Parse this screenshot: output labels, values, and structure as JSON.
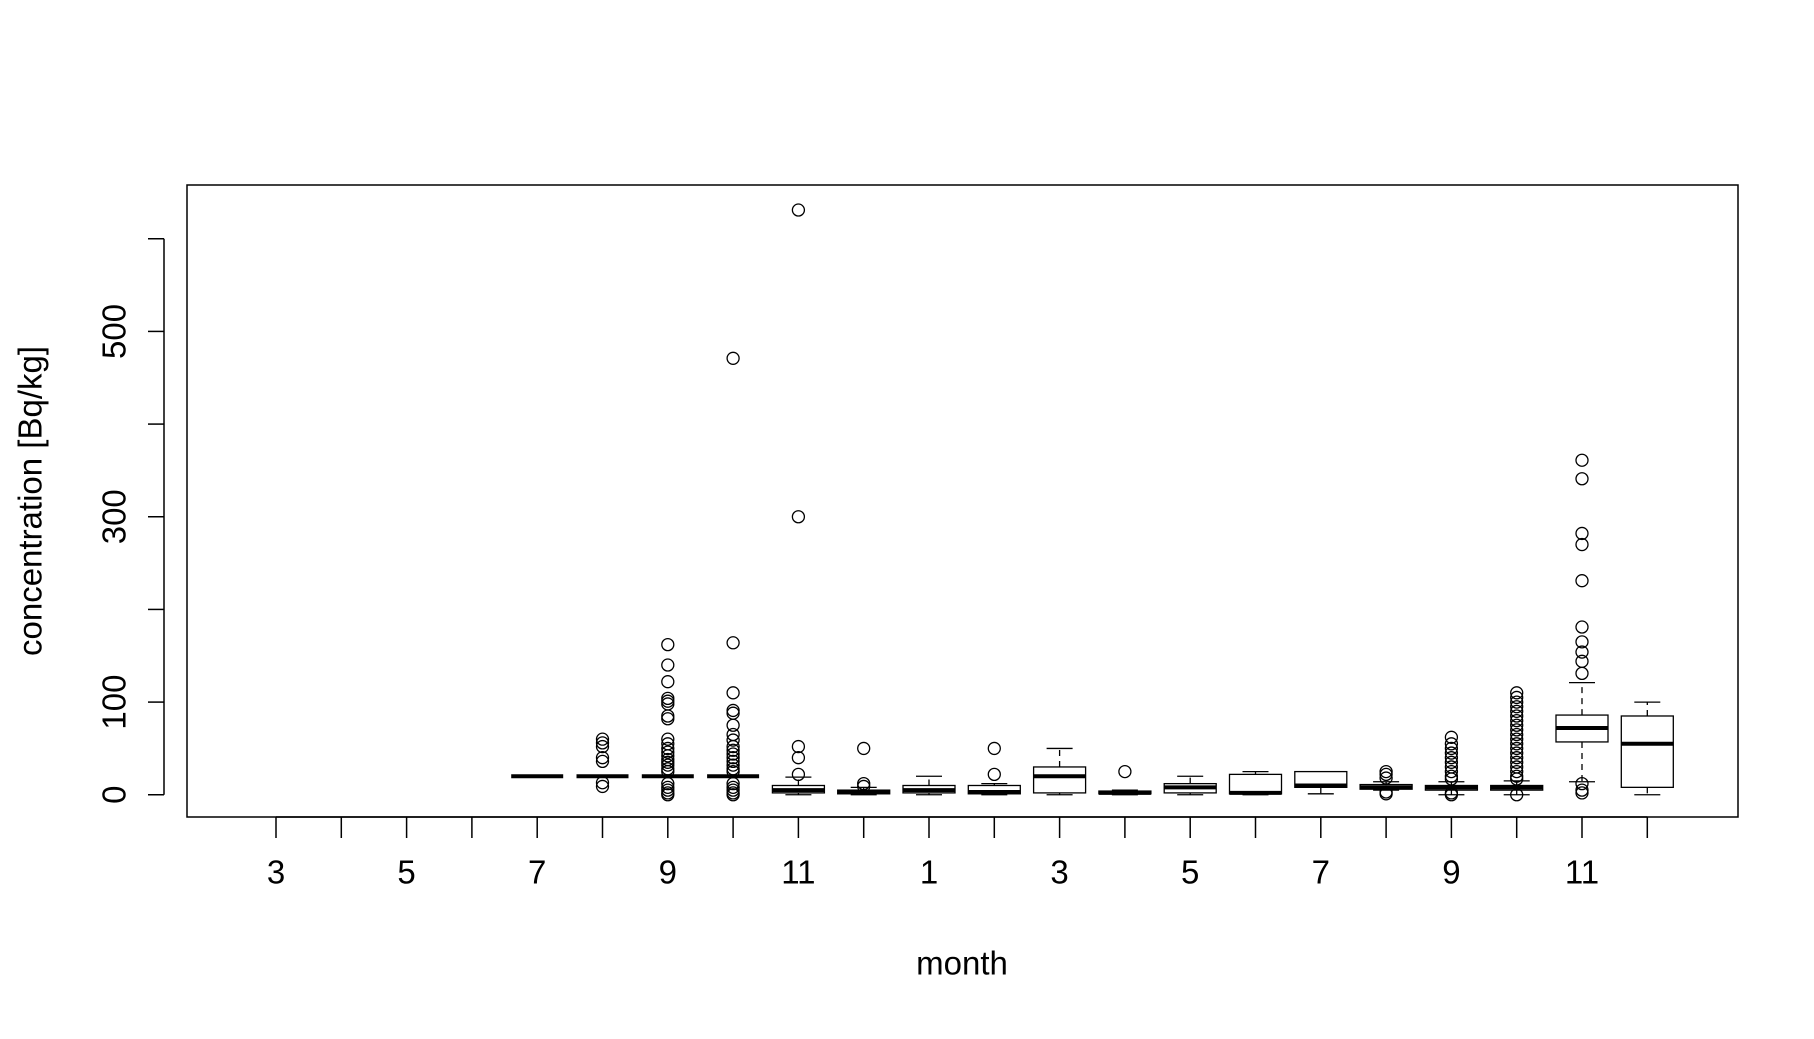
{
  "chart_data": {
    "type": "box",
    "x_label": "month",
    "y_label": "concentration [Bq/kg]",
    "categories": [
      "3",
      null,
      "5",
      null,
      "7",
      null,
      "9",
      null,
      "11",
      null,
      "1",
      null,
      "3",
      null,
      "5",
      null,
      "7",
      null,
      "9",
      null,
      "11",
      null
    ],
    "ylim": [
      -24,
      658
    ],
    "yticks": [
      0,
      100,
      {
        "value": 200,
        "label": null
      },
      300,
      {
        "value": 400,
        "label": null
      },
      500,
      {
        "value": 600,
        "label": null
      }
    ],
    "whisker_low": [
      null,
      null,
      null,
      null,
      20,
      20,
      20,
      20,
      0,
      0,
      0,
      0,
      0,
      0,
      0,
      0,
      1,
      5,
      0,
      0,
      14,
      0
    ],
    "q1": [
      null,
      null,
      null,
      null,
      20,
      20,
      20,
      20,
      2,
      1,
      2,
      1,
      2,
      1,
      2,
      1,
      8,
      6,
      5,
      5,
      57,
      8
    ],
    "median": [
      null,
      null,
      null,
      null,
      20,
      20,
      20,
      20,
      5,
      3,
      5,
      3,
      20,
      2,
      8,
      2,
      10,
      8,
      8,
      8,
      72,
      55
    ],
    "q3": [
      null,
      null,
      null,
      null,
      20,
      20,
      20,
      20,
      10,
      5,
      10,
      10,
      30,
      4,
      12,
      22,
      25,
      11,
      10,
      10,
      86,
      85
    ],
    "whisker_high": [
      null,
      null,
      null,
      null,
      20,
      20,
      20,
      20,
      19,
      8,
      20,
      12,
      50,
      5,
      20,
      25,
      25,
      14,
      14,
      15,
      121,
      100
    ],
    "outliers": [
      [],
      [],
      [],
      [],
      [],
      [
        60,
        56,
        52,
        40,
        36,
        13,
        9
      ],
      [
        162,
        140,
        122,
        104,
        101,
        98,
        85,
        82,
        60,
        55,
        50,
        46,
        42,
        38,
        35,
        32,
        28,
        25,
        12,
        8,
        5,
        2,
        0
      ],
      [
        471,
        164,
        110,
        91,
        88,
        75,
        65,
        59,
        52,
        48,
        44,
        40,
        36,
        32,
        28,
        25,
        12,
        8,
        5,
        2,
        0
      ],
      [
        631,
        300,
        52,
        40,
        22
      ],
      [
        50,
        12,
        9
      ],
      [],
      [
        50,
        22
      ],
      [],
      [
        25
      ],
      [],
      [],
      [],
      [
        25,
        22,
        18,
        3,
        1
      ],
      [
        62,
        55,
        50,
        45,
        40,
        35,
        30,
        25,
        20,
        17,
        2,
        0
      ],
      [
        110,
        105,
        100,
        95,
        90,
        85,
        80,
        75,
        70,
        65,
        60,
        55,
        50,
        45,
        40,
        35,
        30,
        25,
        20,
        17,
        0
      ],
      [
        361,
        341,
        282,
        270,
        231,
        181,
        165,
        154,
        144,
        131,
        12,
        5,
        2
      ],
      []
    ]
  }
}
